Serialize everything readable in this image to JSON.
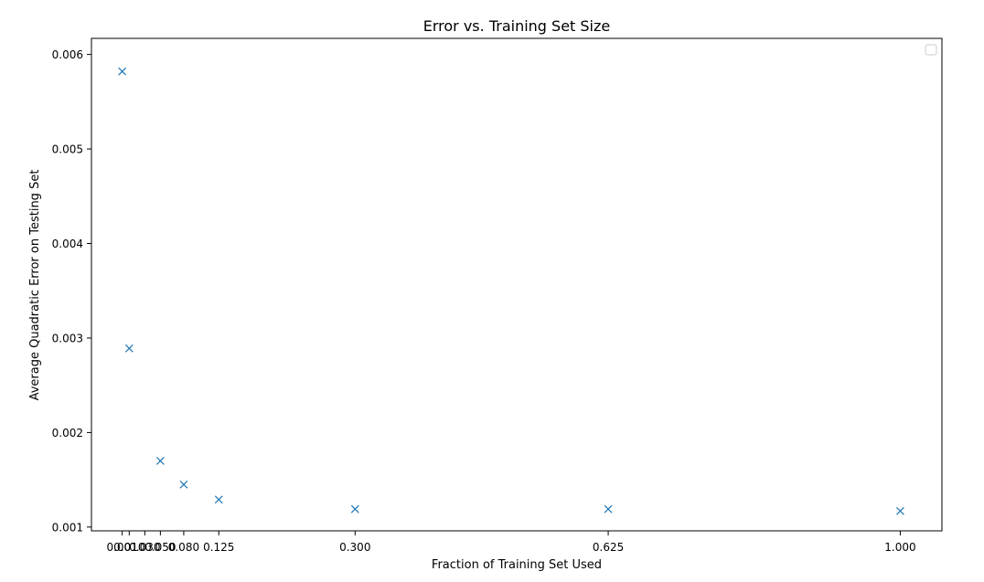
{
  "chart_data": {
    "type": "scatter",
    "title": "Error vs. Training Set Size",
    "xlabel": "Fraction of Training Set Used",
    "ylabel": "Average Quadratic Error on Testing Set",
    "xlim": [
      -0.0385,
      1.0535
    ],
    "ylim": [
      0.00096,
      0.00617
    ],
    "xticks": [
      0.001,
      0.01,
      0.03,
      0.05,
      0.08,
      0.125,
      0.3,
      0.625,
      1.0
    ],
    "xtick_labels": [
      "0.001",
      "0.010",
      "0.030",
      "0.050",
      "0.080",
      "0.125",
      "0.300",
      "0.625",
      "1.000"
    ],
    "yticks": [
      0.001,
      0.002,
      0.003,
      0.004,
      0.005,
      0.006
    ],
    "ytick_labels": [
      "0.001",
      "0.002",
      "0.003",
      "0.004",
      "0.005",
      "0.006"
    ],
    "series": [
      {
        "marker": "x",
        "color": "#1f77b4",
        "points": [
          {
            "x": 0.001,
            "y": 0.00582
          },
          {
            "x": 0.01,
            "y": 0.00289
          },
          {
            "x": 0.05,
            "y": 0.0017
          },
          {
            "x": 0.08,
            "y": 0.00145
          },
          {
            "x": 0.125,
            "y": 0.00129
          },
          {
            "x": 0.3,
            "y": 0.00119
          },
          {
            "x": 0.625,
            "y": 0.00119
          },
          {
            "x": 1.0,
            "y": 0.00117
          }
        ]
      }
    ],
    "legend": {
      "position": "top-right",
      "entries": []
    },
    "grid": false
  }
}
